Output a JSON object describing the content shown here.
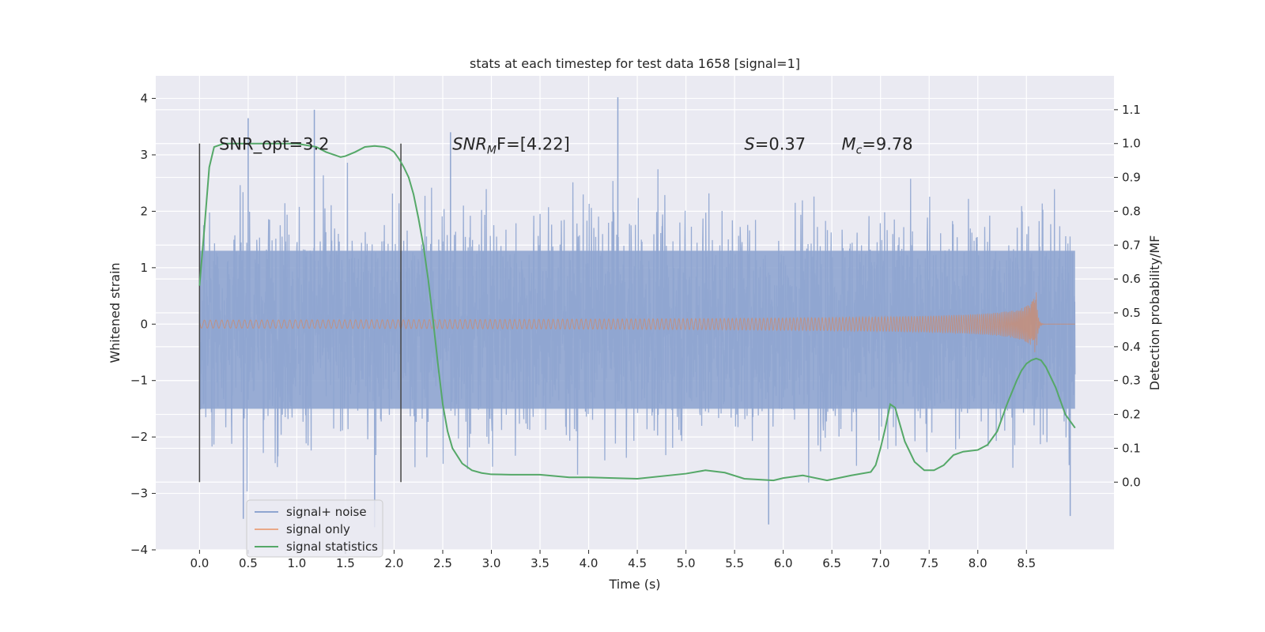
{
  "chart_data": {
    "type": "line",
    "title": "stats at each timestep for test data 1658 [signal=1]",
    "xlabel": "Time (s)",
    "ylabel": "Whitened strain",
    "y2label": "Detection probability/MF",
    "xlim": [
      -0.45,
      9.4
    ],
    "ylim": [
      -4.0,
      4.4
    ],
    "y2lim": [
      -0.2,
      1.2
    ],
    "xticks": [
      0.0,
      0.5,
      1.0,
      1.5,
      2.0,
      2.5,
      3.0,
      3.5,
      4.0,
      4.5,
      5.0,
      5.5,
      6.0,
      6.5,
      7.0,
      7.5,
      8.0,
      8.5
    ],
    "xtick_labels": [
      "0.0",
      "0.5",
      "1.0",
      "1.5",
      "2.0",
      "2.5",
      "3.0",
      "3.5",
      "4.0",
      "4.5",
      "5.0",
      "5.5",
      "6.0",
      "6.5",
      "7.0",
      "7.5",
      "8.0",
      "8.5"
    ],
    "yticks": [
      -4,
      -3,
      -2,
      -1,
      0,
      1,
      2,
      3,
      4
    ],
    "ytick_labels": [
      "−4",
      "−3",
      "−2",
      "−1",
      "0",
      "1",
      "2",
      "3",
      "4"
    ],
    "y2ticks": [
      0.0,
      0.1,
      0.2,
      0.3,
      0.4,
      0.5,
      0.6,
      0.7,
      0.8,
      0.9,
      1.0,
      1.1
    ],
    "y2tick_labels": [
      "0.0",
      "0.1",
      "0.2",
      "0.3",
      "0.4",
      "0.5",
      "0.6",
      "0.7",
      "0.8",
      "0.9",
      "1.0",
      "1.1"
    ],
    "grid": true,
    "legend_position": "lower-left",
    "series": [
      {
        "name": "signal+ noise",
        "color": "#8fa5d0",
        "x_range": [
          0.0,
          9.0
        ],
        "envelope": [
          1.3,
          -1.5
        ],
        "notable_spikes": [
          {
            "x": 0.5,
            "y": 3.65
          },
          {
            "x": 1.18,
            "y": 3.8
          },
          {
            "x": 2.58,
            "y": 3.4
          },
          {
            "x": 4.3,
            "y": 4.02
          },
          {
            "x": 0.45,
            "y": -3.45
          },
          {
            "x": 1.8,
            "y": -3.6
          },
          {
            "x": 5.85,
            "y": -3.55
          },
          {
            "x": 8.95,
            "y": -3.4
          }
        ]
      },
      {
        "name": "signal only",
        "color": "#dd8452",
        "chirp": {
          "start": 0.0,
          "merger": 8.6,
          "end": 9.0,
          "peak_amplitude": 0.6
        }
      },
      {
        "name": "signal statistics",
        "color": "#55a868",
        "axis": "right",
        "x": [
          0.0,
          0.05,
          0.1,
          0.15,
          0.25,
          0.4,
          0.6,
          0.8,
          1.0,
          1.1,
          1.2,
          1.3,
          1.4,
          1.45,
          1.5,
          1.6,
          1.7,
          1.8,
          1.9,
          1.95,
          2.0,
          2.05,
          2.1,
          2.15,
          2.2,
          2.25,
          2.3,
          2.35,
          2.4,
          2.45,
          2.5,
          2.55,
          2.6,
          2.7,
          2.8,
          2.9,
          3.0,
          3.2,
          3.5,
          3.8,
          4.0,
          4.5,
          5.0,
          5.2,
          5.4,
          5.6,
          5.9,
          6.0,
          6.2,
          6.45,
          6.7,
          6.9,
          6.95,
          7.0,
          7.05,
          7.1,
          7.15,
          7.25,
          7.35,
          7.45,
          7.55,
          7.65,
          7.75,
          7.85,
          8.0,
          8.1,
          8.2,
          8.3,
          8.4,
          8.45,
          8.5,
          8.55,
          8.6,
          8.65,
          8.7,
          8.8,
          8.9,
          9.0
        ],
        "values": [
          0.58,
          0.75,
          0.93,
          0.99,
          1.0,
          1.0,
          1.0,
          1.0,
          1.0,
          0.995,
          0.99,
          0.975,
          0.965,
          0.96,
          0.963,
          0.975,
          0.99,
          0.993,
          0.99,
          0.985,
          0.975,
          0.955,
          0.93,
          0.9,
          0.85,
          0.78,
          0.7,
          0.6,
          0.48,
          0.35,
          0.23,
          0.15,
          0.1,
          0.055,
          0.035,
          0.027,
          0.023,
          0.022,
          0.022,
          0.014,
          0.014,
          0.01,
          0.025,
          0.035,
          0.028,
          0.01,
          0.005,
          0.012,
          0.02,
          0.005,
          0.02,
          0.03,
          0.05,
          0.1,
          0.16,
          0.23,
          0.22,
          0.12,
          0.06,
          0.035,
          0.035,
          0.05,
          0.08,
          0.09,
          0.095,
          0.11,
          0.15,
          0.23,
          0.3,
          0.33,
          0.35,
          0.36,
          0.365,
          0.36,
          0.34,
          0.28,
          0.2,
          0.16
        ]
      }
    ],
    "vertical_markers": [
      {
        "x": 0.0,
        "y_range": [
          -2.8,
          3.2
        ],
        "color": "#444444"
      },
      {
        "x": 2.07,
        "y_range": [
          -2.8,
          3.2
        ],
        "color": "#444444"
      }
    ],
    "annotations": [
      {
        "x": 0.2,
        "y": 3.2,
        "text": "SNR_opt=3.2"
      },
      {
        "x": 2.6,
        "y": 3.2,
        "text_italic": "SNR",
        "sub": "M",
        "text_rest": "F=[4.22]"
      },
      {
        "x": 5.6,
        "y": 3.2,
        "text_italic": "S",
        "sub": "",
        "text_rest": "=0.37"
      },
      {
        "x": 6.6,
        "y": 3.2,
        "text_italic": "M",
        "sub": "c",
        "text_rest": "=9.78"
      }
    ],
    "legend": [
      "signal+ noise",
      "signal only",
      "signal statistics"
    ]
  }
}
